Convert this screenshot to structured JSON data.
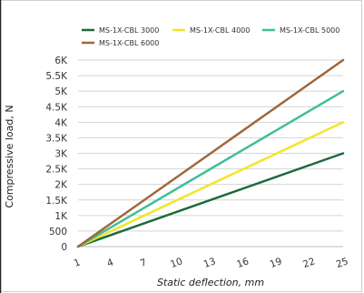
{
  "chart_data": {
    "type": "line",
    "xlabel": "Static deflection, mm",
    "ylabel": "Compressive load, N",
    "xlim": [
      1,
      25
    ],
    "ylim": [
      0,
      6000
    ],
    "x_ticks": [
      "1",
      "4",
      "7",
      "10",
      "13",
      "16",
      "19",
      "22",
      "25"
    ],
    "y_ticks": [
      "0",
      "500",
      "1K",
      "1.5K",
      "2K",
      "2.5K",
      "3K",
      "3.5K",
      "4K",
      "4.5K",
      "5K",
      "5.5K",
      "6K"
    ],
    "grid": true,
    "legend_position": "top",
    "series": [
      {
        "name": "MS-1X-CBL 3000",
        "color": "#1a6b3c",
        "x": [
          1,
          25
        ],
        "y": [
          0,
          3000
        ]
      },
      {
        "name": "MS-1X-CBL 4000",
        "color": "#f2e52a",
        "x": [
          1,
          25
        ],
        "y": [
          0,
          4000
        ]
      },
      {
        "name": "MS-1X-CBL 5000",
        "color": "#3fbf9a",
        "x": [
          1,
          25
        ],
        "y": [
          0,
          5000
        ]
      },
      {
        "name": "MS-1X-CBL 6000",
        "color": "#a0673a",
        "x": [
          1,
          25
        ],
        "y": [
          0,
          6000
        ]
      }
    ]
  }
}
